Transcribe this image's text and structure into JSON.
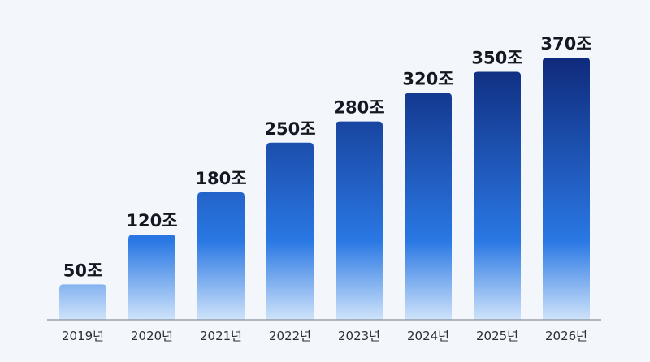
{
  "chart_data": {
    "type": "bar",
    "categories": [
      "2019년",
      "2020년",
      "2021년",
      "2022년",
      "2023년",
      "2024년",
      "2025년",
      "2026년"
    ],
    "values": [
      50,
      120,
      180,
      250,
      280,
      320,
      350,
      370
    ],
    "data_labels": [
      "50조",
      "120조",
      "180조",
      "250조",
      "280조",
      "320조",
      "350조",
      "370조"
    ],
    "title": "",
    "xlabel": "",
    "ylabel": "",
    "ylim": [
      0,
      370
    ],
    "grid": false,
    "colors": {
      "top": "#0f2a7c",
      "middle": "#2a78e4",
      "bottom": "#cfe3fa",
      "background": "#f3f7fc",
      "axis": "#8a9099"
    }
  }
}
